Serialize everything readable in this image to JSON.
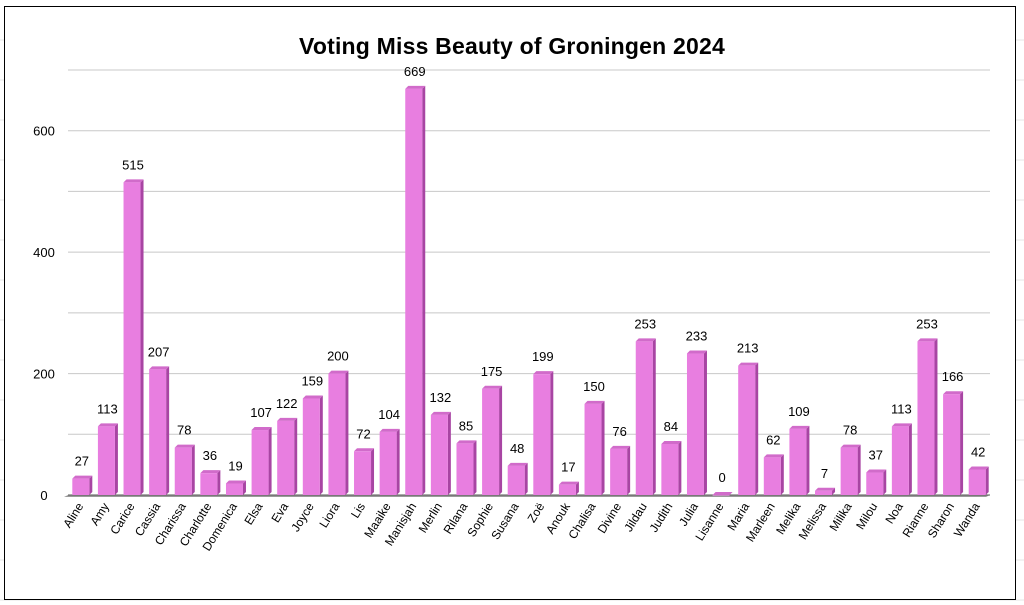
{
  "chart_data": {
    "type": "bar",
    "title": "Voting Miss Beauty of Groningen 2024",
    "xlabel": "",
    "ylabel": "",
    "ylim": [
      0,
      700
    ],
    "yticks": [
      0,
      200,
      400,
      600
    ],
    "grid": true,
    "bar_color": "#e87ee0",
    "bar_side_color": "#a845a3",
    "categories": [
      "Aline",
      "Amy",
      "Carice",
      "Cassia",
      "Charissa",
      "Charlotte",
      "Domenica",
      "Elsa",
      "Eva",
      "Joyce",
      "Liora",
      "Lis",
      "Maaike",
      "Manisjah",
      "Merlin",
      "Rilana",
      "Sophie",
      "Susana",
      "Zoë",
      "Anouk",
      "Chalisa",
      "Divine",
      "Jildau",
      "Judith",
      "Julia",
      "Lisanne",
      "Maria",
      "Marleen",
      "Melika",
      "Melissa",
      "Milika",
      "Milou",
      "Noa",
      "Rianne",
      "Sharon",
      "Wanda"
    ],
    "values": [
      27,
      113,
      515,
      207,
      78,
      36,
      19,
      107,
      122,
      159,
      200,
      72,
      104,
      669,
      132,
      85,
      175,
      48,
      199,
      17,
      150,
      76,
      253,
      84,
      233,
      0,
      213,
      62,
      109,
      7,
      78,
      37,
      113,
      253,
      166,
      42
    ]
  }
}
